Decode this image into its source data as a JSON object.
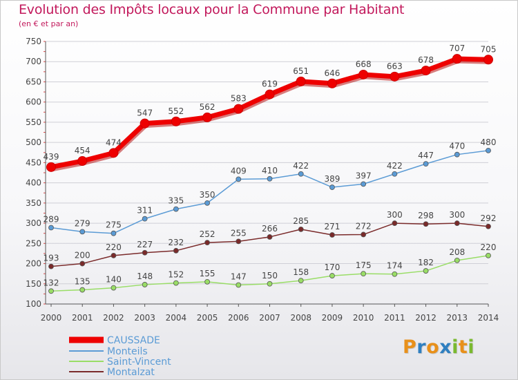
{
  "title": "Evolution des Impôts locaux pour la Commune par Habitant",
  "subtitle": "(en € et par an)",
  "logo": {
    "letters": [
      "P",
      "r",
      "o",
      "x",
      "i",
      "t",
      "i"
    ],
    "colors": [
      "#e8901a",
      "#2f7fc0",
      "#e8901a",
      "#2f7fc0",
      "#7ab92f",
      "#e8901a",
      "#7ab92f"
    ]
  },
  "colors": {
    "title": "#c2185b",
    "grid": "#cfcfd6",
    "axis": "#555555",
    "label": "#444444"
  },
  "chart_data": {
    "type": "line",
    "x": [
      "2000",
      "2001",
      "2002",
      "2003",
      "2004",
      "2005",
      "2006",
      "2007",
      "2008",
      "2009",
      "2010",
      "2011",
      "2012",
      "2013",
      "2014"
    ],
    "ylim": [
      100,
      750
    ],
    "yticks": [
      "100",
      "150",
      "200",
      "250",
      "300",
      "350",
      "400",
      "450",
      "500",
      "550",
      "600",
      "650",
      "700",
      "750"
    ],
    "grid": true,
    "legend_position": "bottom-left",
    "series": [
      {
        "name": "CAUSSADE",
        "color": "#ee0000",
        "values": [
          439,
          454,
          474,
          547,
          552,
          562,
          583,
          619,
          651,
          646,
          668,
          663,
          678,
          707,
          705
        ]
      },
      {
        "name": "Monteils",
        "color": "#5b9bd5",
        "values": [
          289,
          279,
          275,
          311,
          335,
          350,
          409,
          410,
          422,
          389,
          397,
          422,
          447,
          470,
          480
        ]
      },
      {
        "name": "Saint-Vincent",
        "color": "#99dd66",
        "values": [
          132,
          135,
          140,
          148,
          152,
          155,
          147,
          150,
          158,
          170,
          175,
          174,
          182,
          208,
          220
        ]
      },
      {
        "name": "Montalzat",
        "color": "#7a2a2a",
        "values": [
          193,
          200,
          220,
          227,
          232,
          252,
          255,
          266,
          285,
          271,
          272,
          300,
          298,
          300,
          292
        ]
      }
    ]
  }
}
